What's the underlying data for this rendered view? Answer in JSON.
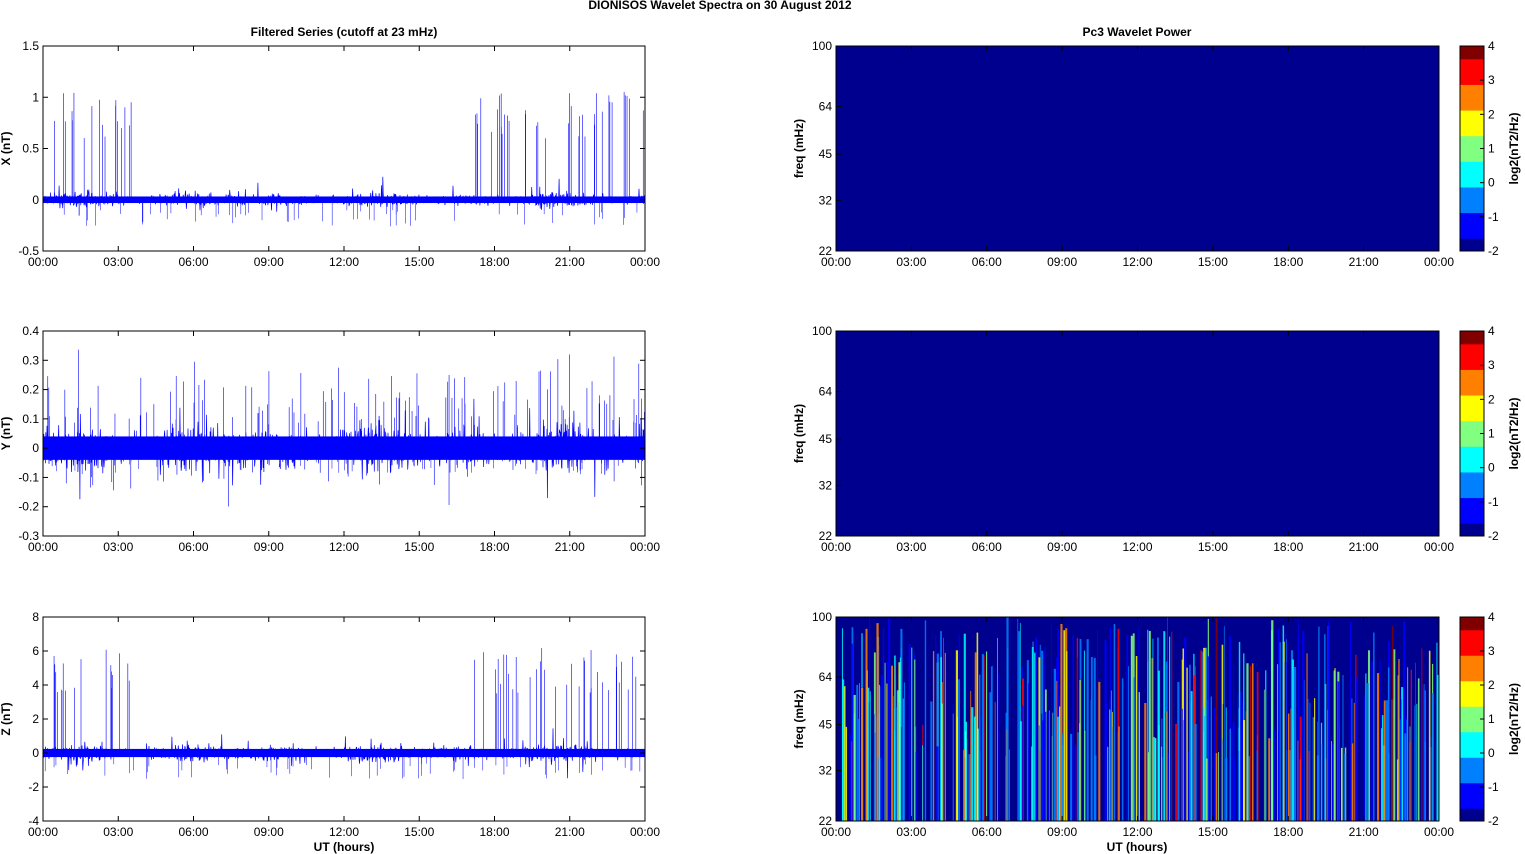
{
  "figure": {
    "title": "DIONISOS Wavelet Spectra on 30 August    2012",
    "left_column_title": "Filtered Series (cutoff at 23 mHz)",
    "right_column_title": "Pc3 Wavelet Power",
    "time_xlabel": "UT (hours)"
  },
  "colors": {
    "trace": "#0000ff",
    "background_power": "#00008f",
    "colormap": [
      "#00008f",
      "#0000ff",
      "#0080ff",
      "#00ffff",
      "#80ff80",
      "#ffff00",
      "#ff8000",
      "#ff0000",
      "#800000"
    ]
  },
  "chart_data": [
    {
      "type": "line",
      "panel": "X",
      "title": "Filtered Series (cutoff at 23 mHz)",
      "ylabel": "X (nT)",
      "xlabel": "",
      "x_ticks": [
        "00:00",
        "03:00",
        "06:00",
        "09:00",
        "12:00",
        "15:00",
        "18:00",
        "21:00",
        "00:00"
      ],
      "xlim_hours": [
        0,
        24
      ],
      "ylim": [
        -0.5,
        1.5
      ],
      "y_ticks": [
        "1.5",
        "1",
        "0.5",
        "0",
        "-0.5"
      ],
      "noise_amplitude": 0.04,
      "spike_windows_hours": [
        [
          0.4,
          3.7
        ],
        [
          17.2,
          24
        ]
      ],
      "spike_peak_range": [
        0.6,
        1.05
      ],
      "series": [
        {
          "values_summary": "blue noise band about 0 with spikes"
        }
      ]
    },
    {
      "type": "line",
      "panel": "Y",
      "title": "",
      "ylabel": "Y (nT)",
      "xlabel": "",
      "x_ticks": [
        "00:00",
        "03:00",
        "06:00",
        "09:00",
        "12:00",
        "15:00",
        "18:00",
        "21:00",
        "00:00"
      ],
      "xlim_hours": [
        0,
        24
      ],
      "ylim": [
        -0.3,
        0.4
      ],
      "y_ticks": [
        "0.4",
        "0.3",
        "0.2",
        "0.1",
        "0",
        "-0.1",
        "-0.2",
        "-0.3"
      ],
      "noise_amplitude": 0.05,
      "spike_windows_hours": [
        [
          0,
          24
        ]
      ],
      "spike_peak_range": [
        0.12,
        0.36
      ],
      "series": [
        {
          "values_summary": "dense blue noise band about 0"
        }
      ]
    },
    {
      "type": "line",
      "panel": "Z",
      "title": "",
      "ylabel": "Z (nT)",
      "xlabel": "UT (hours)",
      "x_ticks": [
        "00:00",
        "03:00",
        "06:00",
        "09:00",
        "12:00",
        "15:00",
        "18:00",
        "21:00",
        "00:00"
      ],
      "xlim_hours": [
        0,
        24
      ],
      "ylim": [
        -4,
        8
      ],
      "y_ticks": [
        "8",
        "6",
        "4",
        "2",
        "0",
        "-2",
        "-4"
      ],
      "noise_amplitude": 0.3,
      "spike_windows_hours": [
        [
          0.4,
          3.7
        ],
        [
          17.2,
          24
        ]
      ],
      "spike_peak_range": [
        3.5,
        6.2
      ],
      "series": [
        {
          "values_summary": "blue noise band about 0 with spikes"
        }
      ]
    },
    {
      "type": "heatmap",
      "panel": "X power",
      "title": "Pc3 Wavelet Power",
      "ylabel": "freq (mHz)",
      "xlabel": "",
      "x_ticks": [
        "00:00",
        "03:00",
        "06:00",
        "09:00",
        "12:00",
        "15:00",
        "18:00",
        "21:00",
        "00:00"
      ],
      "y_ticks": [
        "100",
        "64",
        "45",
        "32",
        "22"
      ],
      "ylim_mHz": [
        22,
        100
      ],
      "y_scale": "log",
      "colorbar_label": "log2(nT2/Hz)",
      "colorbar_ticks": [
        "4",
        "3",
        "2",
        "1",
        "0",
        "-1",
        "-2"
      ],
      "clim": [
        -2,
        4
      ],
      "level": -2,
      "activity": "none"
    },
    {
      "type": "heatmap",
      "panel": "Y power",
      "title": "",
      "ylabel": "freq (mHz)",
      "xlabel": "",
      "x_ticks": [
        "00:00",
        "03:00",
        "06:00",
        "09:00",
        "12:00",
        "15:00",
        "18:00",
        "21:00",
        "00:00"
      ],
      "y_ticks": [
        "100",
        "64",
        "45",
        "32",
        "22"
      ],
      "ylim_mHz": [
        22,
        100
      ],
      "y_scale": "log",
      "colorbar_label": "log2(nT2/Hz)",
      "colorbar_ticks": [
        "4",
        "3",
        "2",
        "1",
        "0",
        "-1",
        "-2"
      ],
      "clim": [
        -2,
        4
      ],
      "level": -2,
      "activity": "none"
    },
    {
      "type": "heatmap",
      "panel": "Z power",
      "title": "",
      "ylabel": "freq (mHz)",
      "xlabel": "UT (hours)",
      "x_ticks": [
        "00:00",
        "03:00",
        "06:00",
        "09:00",
        "12:00",
        "15:00",
        "18:00",
        "21:00",
        "00:00"
      ],
      "y_ticks": [
        "100",
        "64",
        "45",
        "32",
        "22"
      ],
      "ylim_mHz": [
        22,
        100
      ],
      "y_scale": "log",
      "colorbar_label": "log2(nT2/Hz)",
      "colorbar_ticks": [
        "4",
        "3",
        "2",
        "1",
        "0",
        "-1",
        "-2"
      ],
      "clim": [
        -2,
        4
      ],
      "level": -2,
      "activity": "dense vertical streaks across full day"
    }
  ]
}
